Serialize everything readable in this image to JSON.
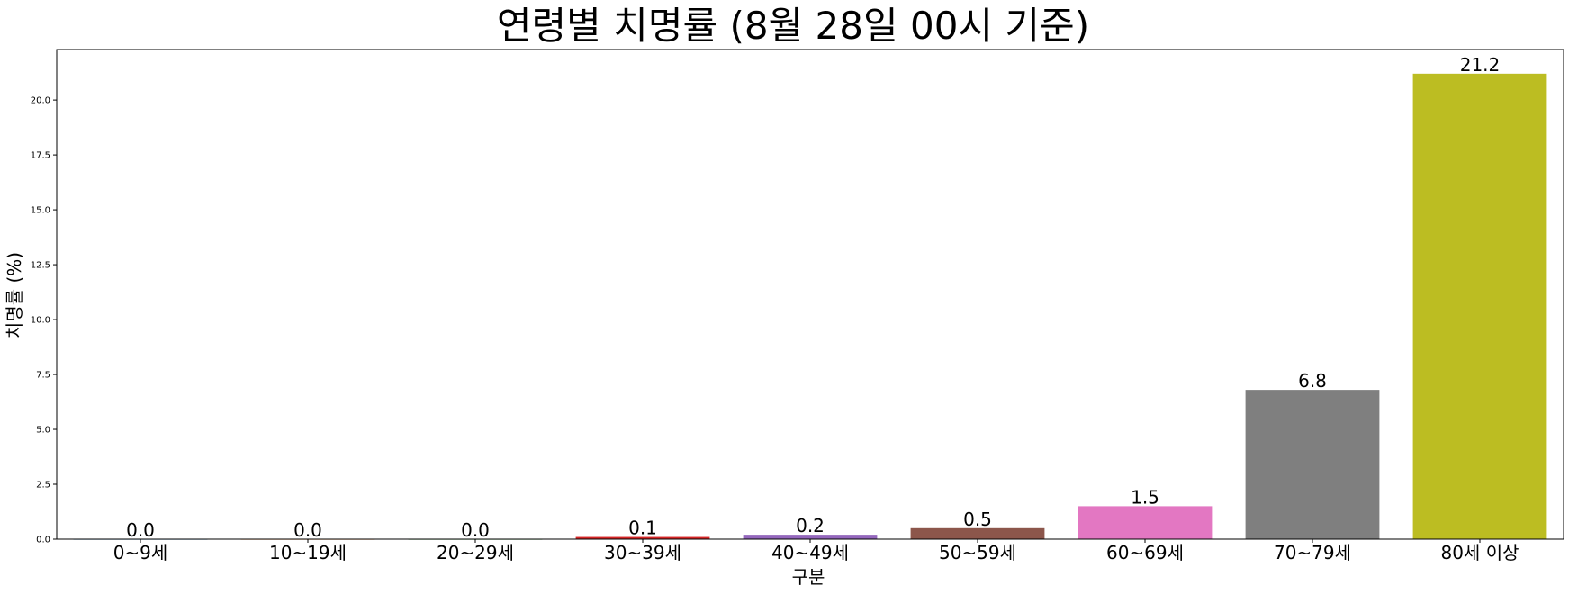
{
  "chart_data": {
    "type": "bar",
    "title": "연령별 치명률 (8월 28일 00시 기준)",
    "xlabel": "구분",
    "ylabel": "치명률 (%)",
    "categories": [
      "0~9세",
      "10~19세",
      "20~29세",
      "30~39세",
      "40~49세",
      "50~59세",
      "60~69세",
      "70~79세",
      "80세 이상"
    ],
    "values": [
      0.0,
      0.0,
      0.0,
      0.1,
      0.2,
      0.5,
      1.5,
      6.8,
      21.2
    ],
    "data_labels": [
      "0.0",
      "0.0",
      "0.0",
      "0.1",
      "0.2",
      "0.5",
      "1.5",
      "6.8",
      "21.2"
    ],
    "colors": [
      "#1f77b4",
      "#ff7f0e",
      "#2ca02c",
      "#d62728",
      "#9467bd",
      "#8c564b",
      "#e377c2",
      "#7f7f7f",
      "#bcbd22"
    ],
    "ylim": [
      0,
      22.3
    ],
    "yticks": [
      0.0,
      2.5,
      5.0,
      7.5,
      10.0,
      12.5,
      15.0,
      17.5,
      20.0
    ],
    "ytick_labels": [
      "0.0",
      "2.5",
      "5.0",
      "7.5",
      "10.0",
      "12.5",
      "15.0",
      "17.5",
      "20.0"
    ],
    "grid": false,
    "legend": "none"
  }
}
